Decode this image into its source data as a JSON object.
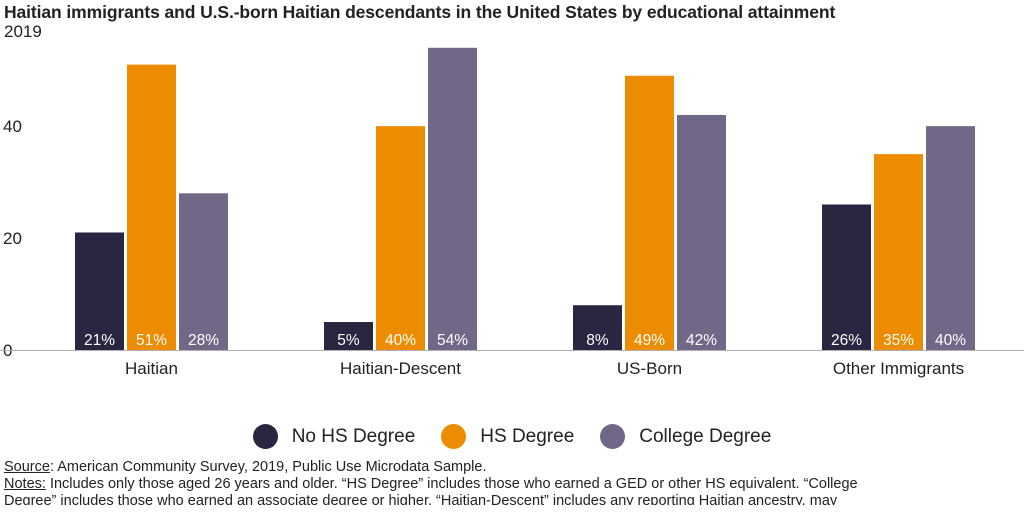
{
  "chart_data": {
    "type": "bar",
    "title": "Haitian immigrants and U.S.-born Haitian descendants in the United States by educational attainment",
    "subtitle": "2019",
    "categories": [
      "Haitian",
      "Haitian-Descent",
      "US-Born",
      "Other Immigrants"
    ],
    "series": [
      {
        "name": "No HS Degree",
        "values": [
          21,
          5,
          8,
          26
        ],
        "color": "#2a2540"
      },
      {
        "name": "HS Degree",
        "values": [
          51,
          40,
          49,
          35
        ],
        "color": "#ec8c00"
      },
      {
        "name": "College Degree",
        "values": [
          28,
          54,
          42,
          40
        ],
        "color": "#716888"
      }
    ],
    "data_labels": [
      [
        "21%",
        "5%",
        "8%",
        "26%"
      ],
      [
        "51%",
        "40%",
        "49%",
        "35%"
      ],
      [
        "28%",
        "54%",
        "42%",
        "40%"
      ]
    ],
    "yticks": [
      "0",
      "20",
      "40"
    ],
    "ylim": [
      0,
      57
    ],
    "grid": false,
    "legend_position": "bottom"
  },
  "footer": {
    "source_label": "Source",
    "source_text": ": American Community Survey, 2019, Public Use Microdata Sample.",
    "notes_label": "Notes:",
    "notes_text": " Includes only those aged 26 years and older. “HS Degree” includes those who earned a GED or other HS equivalent. “College",
    "notes_text_2": "Degree” includes those who earned an associate degree or higher. “Haitian-Descent” includes any reporting Haitian ancestry, may"
  }
}
